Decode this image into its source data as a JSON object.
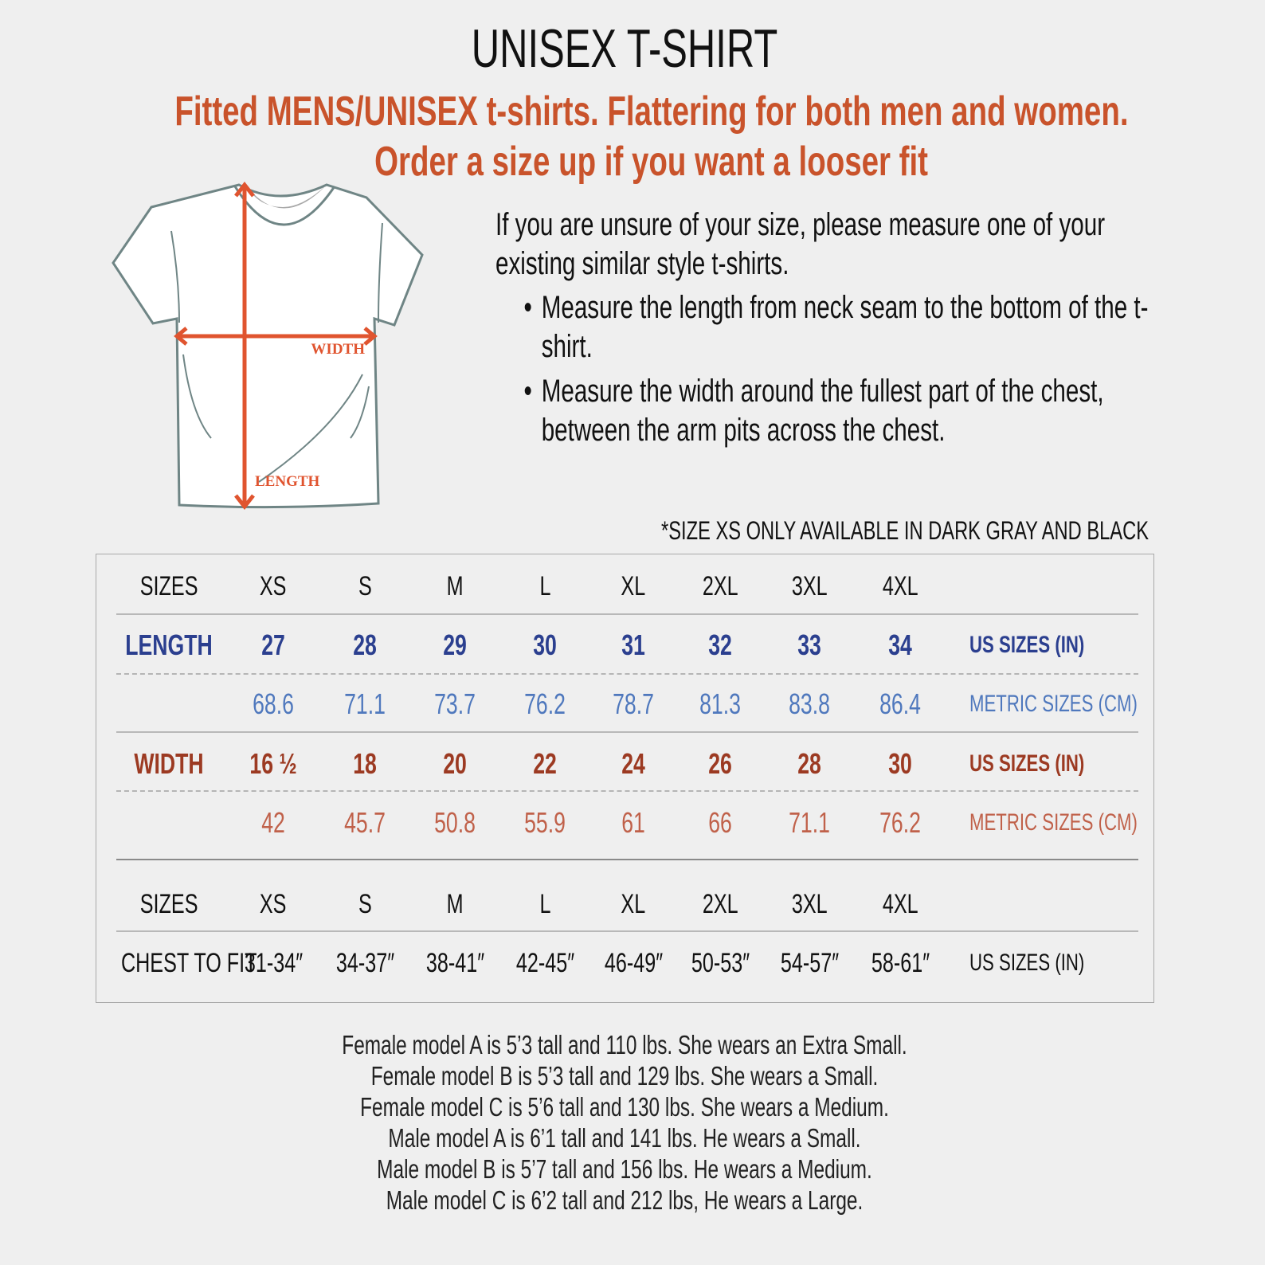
{
  "title": "UNISEX T-SHIRT",
  "subtitle_lines": [
    "Fitted MENS/UNISEX t-shirts. Flattering for both men and women.",
    "Order a size up if you want a looser fit"
  ],
  "diagram": {
    "width_label": "WIDTH",
    "length_label": "LENGTH",
    "accent": "#e0542f"
  },
  "instructions": {
    "intro": "If you are unsure of your size, please measure one of your existing similar style t-shirts.",
    "bullets": [
      "Measure the length from neck seam to the bottom of the t-shirt.",
      "Measure the width around the fullest part of the chest, between the arm pits across the chest."
    ]
  },
  "note": "*SIZE XS ONLY AVAILABLE IN DARK GRAY AND BLACK",
  "table": {
    "sizes_label": "SIZES",
    "sizes": [
      "XS",
      "S",
      "M",
      "L",
      "XL",
      "2XL",
      "3XL",
      "4XL"
    ],
    "length": {
      "label": "LENGTH",
      "us": [
        "27",
        "28",
        "29",
        "30",
        "31",
        "32",
        "33",
        "34"
      ],
      "cm": [
        "68.6",
        "71.1",
        "73.7",
        "76.2",
        "78.7",
        "81.3",
        "83.8",
        "86.4"
      ]
    },
    "width": {
      "label": "WIDTH",
      "us": [
        "16 ½",
        "18",
        "20",
        "22",
        "24",
        "26",
        "28",
        "30"
      ],
      "cm": [
        "42",
        "45.7",
        "50.8",
        "55.9",
        "61",
        "66",
        "71.1",
        "76.2"
      ]
    },
    "us_unit": "US SIZES (IN)",
    "metric_unit": "METRIC SIZES (CM)",
    "chest": {
      "label": "CHEST TO FIT",
      "values": [
        "31-34″",
        "34-37″",
        "38-41″",
        "42-45″",
        "46-49″",
        "50-53″",
        "54-57″",
        "58-61″"
      ],
      "unit": "US SIZES (IN)"
    },
    "colors": {
      "length_us": "#2b3f8f",
      "length_cm": "#4f78bd",
      "width_us": "#9c3a22",
      "width_cm": "#c0614a"
    }
  },
  "models": [
    "Female model A is 5’3 tall and 110 lbs. She wears an Extra Small.",
    "Female model B is 5’3 tall and 129 lbs. She wears a Small.",
    "Female model C is 5’6 tall and 130 lbs. She wears a Medium.",
    "Male model A is 6’1 tall and 141 lbs. He wears a Small.",
    "Male model B is 5’7 tall and 156 lbs. He wears a Medium.",
    "Male model C is 6’2 tall and 212 lbs, He wears a Large."
  ]
}
